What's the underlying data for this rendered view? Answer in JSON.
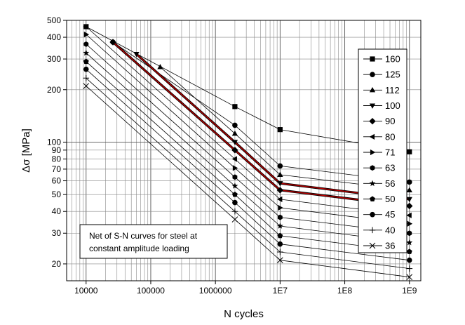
{
  "chart_data": {
    "type": "line",
    "xscale": "log",
    "yscale": "log",
    "xlabel": "N cycles",
    "ylabel": "Δσ [MPa]",
    "xlim": [
      5000,
      1500000000
    ],
    "ylim": [
      16,
      500
    ],
    "grid": true,
    "legend_position": "right",
    "x_ticks": [
      {
        "value": 10000,
        "label": "10000"
      },
      {
        "value": 100000,
        "label": "100000"
      },
      {
        "value": 1000000,
        "label": "1000000"
      },
      {
        "value": 10000000,
        "label": "1E7"
      },
      {
        "value": 100000000,
        "label": "1E8"
      },
      {
        "value": 1000000000,
        "label": "1E9"
      }
    ],
    "y_ticks": [
      {
        "value": 20,
        "label": "20"
      },
      {
        "value": 30,
        "label": "30"
      },
      {
        "value": 40,
        "label": "40"
      },
      {
        "value": 50,
        "label": "50"
      },
      {
        "value": 60,
        "label": "60"
      },
      {
        "value": 70,
        "label": "70"
      },
      {
        "value": 80,
        "label": "80"
      },
      {
        "value": 90,
        "label": "90"
      },
      {
        "value": 100,
        "label": "100"
      },
      {
        "value": 200,
        "label": "200"
      },
      {
        "value": 300,
        "label": "300"
      },
      {
        "value": 400,
        "label": "400"
      },
      {
        "value": 500,
        "label": "500"
      }
    ],
    "annotation": {
      "lines": [
        "Net of S-N curves for steel at",
        "constant amplitude loading"
      ]
    },
    "highlight_color": "#c00000",
    "line_color": "#000000",
    "series": [
      {
        "name": "160",
        "marker": "square",
        "points": [
          [
            10000,
            460
          ],
          [
            2000000,
            160
          ],
          [
            10000000,
            118
          ],
          [
            1000000000,
            88
          ]
        ]
      },
      {
        "name": "125",
        "marker": "circle",
        "points": [
          [
            26000,
            375
          ],
          [
            2000000,
            125
          ],
          [
            10000000,
            73
          ],
          [
            1000000000,
            59
          ]
        ]
      },
      {
        "name": "112",
        "marker": "triangle-up",
        "points": [
          [
            140000,
            270
          ],
          [
            2000000,
            112
          ],
          [
            10000000,
            65
          ],
          [
            1000000000,
            53
          ]
        ]
      },
      {
        "name": "100",
        "marker": "triangle-down",
        "points": [
          [
            60000,
            320
          ],
          [
            2000000,
            100
          ],
          [
            10000000,
            58
          ],
          [
            1000000000,
            47
          ]
        ]
      },
      {
        "name": "90",
        "marker": "diamond",
        "points": [
          [
            26000,
            375
          ],
          [
            2000000,
            90
          ],
          [
            10000000,
            53
          ],
          [
            1000000000,
            43
          ]
        ]
      },
      {
        "name": "80",
        "marker": "triangle-left",
        "points": [
          [
            10000,
            460
          ],
          [
            2000000,
            80
          ],
          [
            10000000,
            47
          ],
          [
            1000000000,
            38
          ]
        ]
      },
      {
        "name": "71",
        "marker": "triangle-right",
        "points": [
          [
            10000,
            415
          ],
          [
            2000000,
            71
          ],
          [
            10000000,
            42
          ],
          [
            1000000000,
            34
          ]
        ]
      },
      {
        "name": "63",
        "marker": "hexagon",
        "points": [
          [
            10000,
            365
          ],
          [
            2000000,
            63
          ],
          [
            10000000,
            37
          ],
          [
            1000000000,
            30
          ]
        ]
      },
      {
        "name": "56",
        "marker": "star",
        "points": [
          [
            10000,
            325
          ],
          [
            2000000,
            56
          ],
          [
            10000000,
            33
          ],
          [
            1000000000,
            26.5
          ]
        ]
      },
      {
        "name": "50",
        "marker": "pentagon",
        "points": [
          [
            10000,
            290
          ],
          [
            2000000,
            50
          ],
          [
            10000000,
            29
          ],
          [
            1000000000,
            23.5
          ]
        ]
      },
      {
        "name": "45",
        "marker": "circle",
        "points": [
          [
            10000,
            262
          ],
          [
            2000000,
            45
          ],
          [
            10000000,
            26
          ],
          [
            1000000000,
            21
          ]
        ]
      },
      {
        "name": "40",
        "marker": "plus",
        "points": [
          [
            10000,
            233
          ],
          [
            2000000,
            40
          ],
          [
            10000000,
            23.4
          ],
          [
            1000000000,
            18.8
          ]
        ]
      },
      {
        "name": "36",
        "marker": "cross",
        "points": [
          [
            10000,
            210
          ],
          [
            2000000,
            36
          ],
          [
            10000000,
            21
          ],
          [
            1000000000,
            16.8
          ]
        ]
      }
    ]
  }
}
